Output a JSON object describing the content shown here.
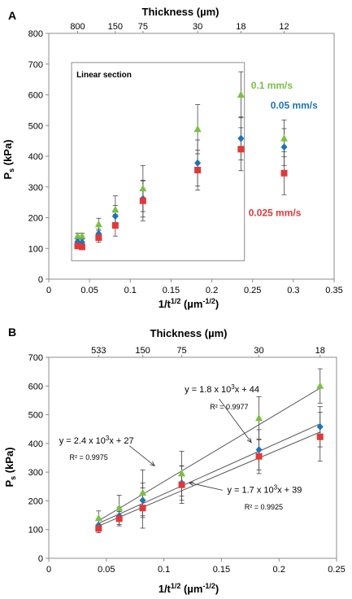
{
  "panels": [
    {
      "label": "A",
      "top_title": "Thickness (µm)",
      "top_ticks": [
        "800",
        "150",
        "75",
        "30",
        "18",
        "12"
      ],
      "top_ticks_x": [
        0.0354,
        0.0816,
        0.1155,
        0.1826,
        0.2357,
        0.2887
      ],
      "xlabel_main": "1/t",
      "xlabel_sup": "1/2",
      "xlabel_unit": " (µm",
      "xlabel_unit_sup": "-1/2",
      "xlabel_close": ")",
      "ylabel_main": "P",
      "ylabel_sub": "s",
      "ylabel_unit": " (kPa)",
      "xticks": [
        "0",
        "0.05",
        "0.1",
        "0.15",
        "0.2",
        "0.25",
        "0.3",
        "0.35"
      ],
      "yticks": [
        "0",
        "100",
        "200",
        "300",
        "400",
        "500",
        "600",
        "700",
        "800"
      ],
      "inset_box_label": "Linear section",
      "inset_box": {
        "x0": 0.028,
        "x1": 0.24,
        "y0": 60,
        "y1": 705
      },
      "series_labels": [
        {
          "text": "0.1 mm/s",
          "x": 0.248,
          "y": 620,
          "color": "#7ac142"
        },
        {
          "text": "0.05 mm/s",
          "x": 0.272,
          "y": 555,
          "color": "#1f73b7"
        },
        {
          "text": "0.025 mm/s",
          "x": 0.245,
          "y": 205,
          "color": "#e0393a"
        }
      ],
      "chart_data": {
        "type": "scatter",
        "xlim": [
          0,
          0.35
        ],
        "ylim": [
          0,
          800
        ],
        "series": [
          {
            "name": "0.1 mm/s",
            "color": "#7ac142",
            "marker": "triangle",
            "x": [
              0.0354,
              0.0408,
              0.0612,
              0.0816,
              0.1155,
              0.1826,
              0.2357,
              0.2887
            ],
            "y": [
              140,
              140,
              178,
              226,
              295,
              488,
              600,
              458
            ],
            "err": [
              10,
              10,
              20,
              45,
              75,
              80,
              75,
              60
            ]
          },
          {
            "name": "0.05 mm/s",
            "color": "#1f73b7",
            "marker": "diamond",
            "x": [
              0.0354,
              0.0408,
              0.0612,
              0.0816,
              0.1155,
              0.1826,
              0.2357,
              0.2887
            ],
            "y": [
              122,
              120,
              148,
              205,
              262,
              378,
              458,
              430
            ],
            "err": [
              10,
              10,
              15,
              35,
              60,
              75,
              70,
              60
            ]
          },
          {
            "name": "0.025 mm/s",
            "color": "#e0393a",
            "marker": "square",
            "x": [
              0.0354,
              0.0408,
              0.0612,
              0.0816,
              0.1155,
              0.1826,
              0.2357,
              0.2887
            ],
            "y": [
              108,
              105,
              135,
              175,
              255,
              355,
              423,
              345
            ],
            "err": [
              8,
              8,
              15,
              35,
              65,
              65,
              70,
              70
            ]
          }
        ]
      }
    },
    {
      "label": "B",
      "top_title": "Thickness (µm)",
      "top_ticks": [
        "533",
        "150",
        "75",
        "30",
        "18"
      ],
      "top_ticks_x": [
        0.0433,
        0.0816,
        0.1155,
        0.1826,
        0.2357
      ],
      "xlabel_main": "1/t",
      "xlabel_sup": "1/2",
      "xlabel_unit": " (µm",
      "xlabel_unit_sup": "-1/2",
      "xlabel_close": ")",
      "ylabel_main": "P",
      "ylabel_sub": "s",
      "ylabel_unit": " (kPa)",
      "xticks": [
        "0",
        "0.05",
        "0.1",
        "0.15",
        "0.2",
        "0.25"
      ],
      "yticks": [
        "0",
        "100",
        "200",
        "300",
        "400",
        "500",
        "600",
        "700"
      ],
      "equations": [
        {
          "pre": "y = 2.4 x 10",
          "sup": "3",
          "post": "x + 27",
          "r2": "R² = 0.9975",
          "x": 0.009,
          "y": 400,
          "r2x": 0.018,
          "r2y": 343
        },
        {
          "pre": "y = 1.8 x 10",
          "sup": "3",
          "post": "x + 44",
          "r2": "R² = 0.9977",
          "x": 0.118,
          "y": 578,
          "r2x": 0.14,
          "r2y": 518
        },
        {
          "pre": "y = 1.7 x 10",
          "sup": "3",
          "post": "x + 39",
          "r2": "R² = 0.9925",
          "x": 0.155,
          "y": 228,
          "r2x": 0.17,
          "r2y": 170
        }
      ],
      "chart_data": {
        "type": "scatter",
        "xlim": [
          0,
          0.25
        ],
        "ylim": [
          0,
          700
        ],
        "series": [
          {
            "name": "0.1 mm/s",
            "color": "#7ac142",
            "marker": "triangle",
            "x": [
              0.0433,
              0.0612,
              0.0816,
              0.1155,
              0.1826,
              0.2357
            ],
            "y": [
              140,
              175,
              228,
              295,
              488,
              600
            ],
            "err": [
              25,
              45,
              80,
              78,
              75,
              60
            ]
          },
          {
            "name": "0.05 mm/s",
            "color": "#1f73b7",
            "marker": "diamond",
            "x": [
              0.0433,
              0.0612,
              0.0816,
              0.1155,
              0.1826,
              0.2357
            ],
            "y": [
              115,
              148,
              202,
              262,
              378,
              458
            ],
            "err": [
              20,
              30,
              60,
              60,
              70,
              70
            ]
          },
          {
            "name": "0.025 mm/s",
            "color": "#e0393a",
            "marker": "square",
            "x": [
              0.0433,
              0.0612,
              0.0816,
              0.1155,
              0.1826,
              0.2357
            ],
            "y": [
              104,
              138,
              175,
              256,
              355,
              423
            ],
            "err": [
              15,
              25,
              70,
              65,
              60,
              85
            ]
          }
        ],
        "trendlines": [
          {
            "slope": 2400,
            "intercept": 27,
            "x": [
              0.0433,
              0.2357
            ],
            "r2": 0.9975
          },
          {
            "slope": 1800,
            "intercept": 44,
            "x": [
              0.0433,
              0.2357
            ],
            "r2": 0.9977
          },
          {
            "slope": 1700,
            "intercept": 39,
            "x": [
              0.0433,
              0.2357
            ],
            "r2": 0.9925
          }
        ]
      }
    }
  ]
}
